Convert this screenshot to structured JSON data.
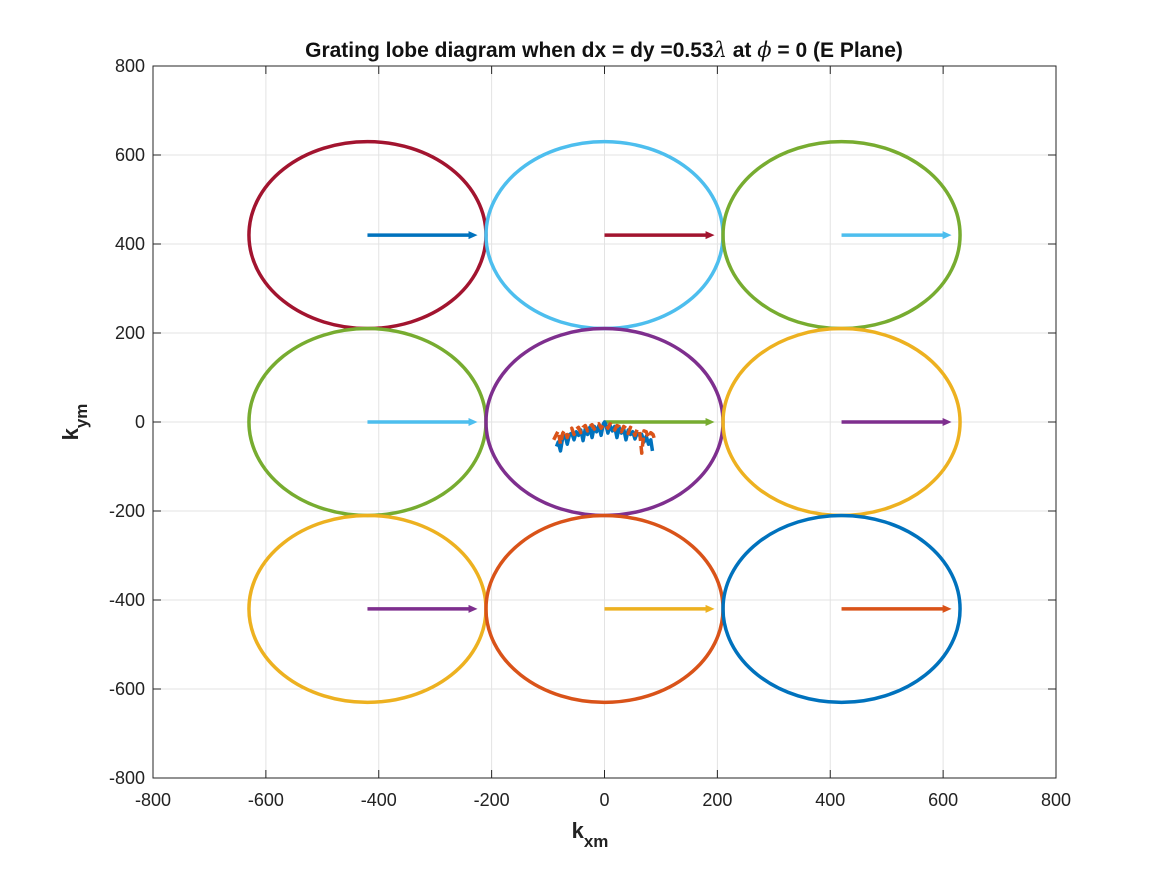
{
  "chart_data": {
    "type": "line",
    "title": {
      "prefix": "Grating lobe diagram when dx = dy =0.53",
      "lambda": "λ",
      "mid": " at ",
      "phi": "ϕ",
      "suffix": " = 0 (E Plane)"
    },
    "xlabel": {
      "main": "k",
      "sub": "xm"
    },
    "ylabel": {
      "main": "k",
      "sub": "ym"
    },
    "xlim": [
      -800,
      800
    ],
    "ylim": [
      -800,
      800
    ],
    "xticks": [
      -800,
      -600,
      -400,
      -200,
      0,
      200,
      400,
      600,
      800
    ],
    "yticks": [
      -800,
      -600,
      -400,
      -200,
      0,
      200,
      400,
      600,
      800
    ],
    "xtick_labels": [
      "-800",
      "-600",
      "-400",
      "-200",
      "0",
      "200",
      "400",
      "600",
      "800"
    ],
    "ytick_labels": [
      "-800",
      "-600",
      "-400",
      "-200",
      "0",
      "200",
      "400",
      "600",
      "800"
    ],
    "grid": true,
    "circle_radius": 210,
    "circles": [
      {
        "cx": -420,
        "cy": 420,
        "color": "#A2142F"
      },
      {
        "cx": 0,
        "cy": 420,
        "color": "#4DBEEE"
      },
      {
        "cx": 420,
        "cy": 420,
        "color": "#77AC30"
      },
      {
        "cx": -420,
        "cy": 0,
        "color": "#77AC30"
      },
      {
        "cx": 0,
        "cy": 0,
        "color": "#7E2F8E"
      },
      {
        "cx": 420,
        "cy": 0,
        "color": "#EDB120"
      },
      {
        "cx": -420,
        "cy": -420,
        "color": "#EDB120"
      },
      {
        "cx": 0,
        "cy": -420,
        "color": "#D95319"
      },
      {
        "cx": 420,
        "cy": -420,
        "color": "#0072BD"
      }
    ],
    "arrows": [
      {
        "x": -420,
        "y": 420,
        "dx": 195,
        "color": "#0072BD"
      },
      {
        "x": 0,
        "y": 420,
        "dx": 195,
        "color": "#A2142F"
      },
      {
        "x": 420,
        "y": 420,
        "dx": 195,
        "color": "#4DBEEE"
      },
      {
        "x": -420,
        "y": 0,
        "dx": 195,
        "color": "#4DBEEE"
      },
      {
        "x": 0,
        "y": 0,
        "dx": 195,
        "color": "#77AC30"
      },
      {
        "x": 420,
        "y": 0,
        "dx": 195,
        "color": "#7E2F8E"
      },
      {
        "x": -420,
        "y": -420,
        "dx": 195,
        "color": "#7E2F8E"
      },
      {
        "x": 0,
        "y": -420,
        "dx": 195,
        "color": "#EDB120"
      },
      {
        "x": 420,
        "y": -420,
        "dx": 195,
        "color": "#D95319"
      }
    ],
    "series": [
      {
        "color": "#0072BD",
        "dash": false,
        "x": [
          -85,
          -82,
          -78,
          -74,
          -70,
          -66,
          -62,
          -58,
          -54,
          -50,
          -46,
          -42,
          -38,
          -34,
          -30,
          -26,
          -22,
          -18,
          -14,
          -10,
          -6,
          -2,
          0,
          2,
          6,
          10,
          14,
          18,
          22,
          26,
          30,
          34,
          38,
          42,
          46,
          50,
          54,
          58,
          62,
          66,
          70,
          74,
          78,
          82,
          85
        ],
        "y": [
          -55,
          -45,
          -65,
          -35,
          -30,
          -50,
          -28,
          -25,
          -40,
          -22,
          -30,
          -18,
          -42,
          -15,
          -28,
          -12,
          -35,
          -10,
          -22,
          -8,
          -30,
          -4,
          0,
          -4,
          -25,
          -8,
          -20,
          -10,
          -35,
          -12,
          -25,
          -15,
          -40,
          -18,
          -28,
          -22,
          -38,
          -25,
          -30,
          -28,
          -45,
          -32,
          -50,
          -40,
          -65
        ]
      },
      {
        "color": "#D95319",
        "dash": true,
        "x": [
          -90,
          -86,
          -82,
          -78,
          -74,
          -70,
          -66,
          -62,
          -58,
          -54,
          -50,
          -46,
          -42,
          -38,
          -34,
          -30,
          -26,
          -22,
          -18,
          -14,
          -10,
          -6,
          -2,
          2,
          6,
          10,
          14,
          18,
          22,
          26,
          30,
          34,
          38,
          42,
          46,
          50,
          54,
          58,
          62,
          66,
          70,
          74,
          78,
          82,
          86,
          90
        ],
        "y": [
          -40,
          -30,
          -20,
          -50,
          -25,
          -18,
          -35,
          -20,
          -14,
          -28,
          -16,
          -12,
          -24,
          -12,
          -8,
          -20,
          -10,
          -6,
          -16,
          -8,
          -4,
          -14,
          -6,
          -6,
          -14,
          -4,
          -8,
          -18,
          -8,
          -10,
          -22,
          -10,
          -14,
          -26,
          -12,
          -16,
          -30,
          -16,
          -18,
          -70,
          -20,
          -22,
          -36,
          -24,
          -28,
          -45
        ]
      }
    ]
  }
}
